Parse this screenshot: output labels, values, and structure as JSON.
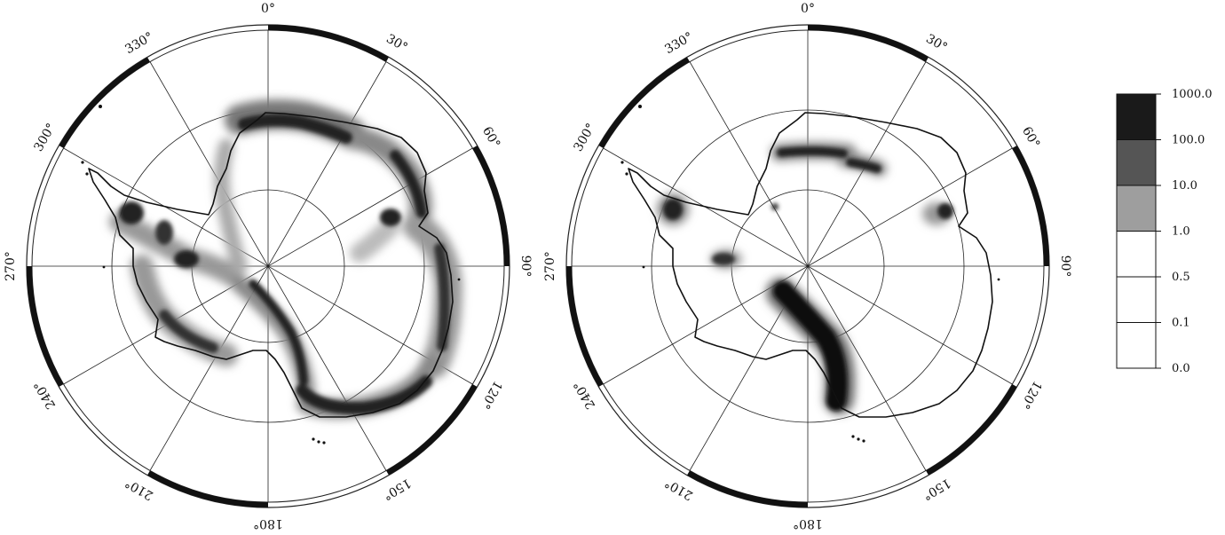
{
  "maps": [
    {
      "name": "left",
      "longitude_labels": [
        "0°",
        "30°",
        "60°",
        "90°",
        "120°",
        "150°",
        "180°",
        "210°",
        "240°",
        "270°",
        "300°",
        "330°"
      ]
    },
    {
      "name": "right",
      "longitude_labels": [
        "0°",
        "30°",
        "60°",
        "90°",
        "120°",
        "150°",
        "180°",
        "210°",
        "240°",
        "270°",
        "300°",
        "330°"
      ]
    }
  ],
  "legend": {
    "levels": [
      "1000.0",
      "100.0",
      "10.0",
      "1.0",
      "0.5",
      "0.1",
      "0.0"
    ],
    "colors": [
      "#1a1a1a",
      "#555555",
      "#9e9e9e",
      "#ffffff",
      "#ffffff",
      "#ffffff"
    ]
  }
}
